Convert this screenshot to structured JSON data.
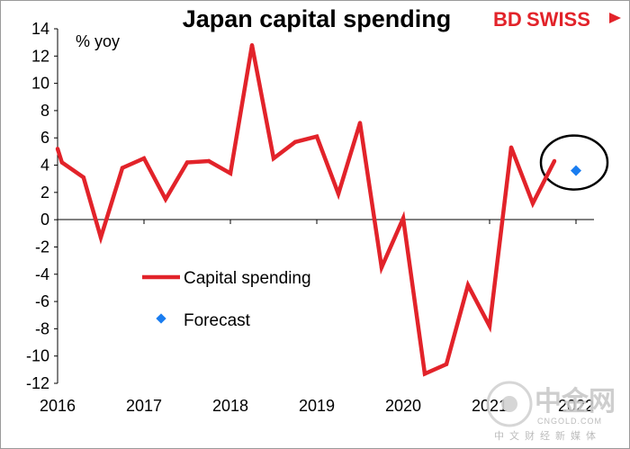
{
  "chart_data": {
    "type": "line",
    "title": "Japan capital spending",
    "ylabel": "% yoy",
    "xlabel": "",
    "ylim": [
      -12,
      14
    ],
    "yticks": [
      14,
      12,
      10,
      8,
      6,
      4,
      2,
      0,
      -2,
      -4,
      -6,
      -8,
      -10,
      -12
    ],
    "xlim": [
      2016.0,
      2022.0
    ],
    "xticks": [
      "2016",
      "2017",
      "2018",
      "2019",
      "2020",
      "2021",
      "2022"
    ],
    "grid": false,
    "legend_position": "center-left",
    "series": [
      {
        "name": "Capital spending",
        "color": "#e2232a",
        "marker": "line",
        "points": [
          {
            "period": "2016 Q1",
            "x": 2016.0,
            "y": 5.2
          },
          {
            "period": "2016 Q1",
            "x": 2016.05,
            "y": 4.2
          },
          {
            "period": "2016 Q2",
            "x": 2016.3,
            "y": 3.1
          },
          {
            "period": "2016 Q3",
            "x": 2016.5,
            "y": -1.3
          },
          {
            "period": "2016 Q4",
            "x": 2016.75,
            "y": 3.8
          },
          {
            "period": "2017 Q1",
            "x": 2017.0,
            "y": 4.5
          },
          {
            "period": "2017 Q2",
            "x": 2017.25,
            "y": 1.5
          },
          {
            "period": "2017 Q3",
            "x": 2017.5,
            "y": 4.2
          },
          {
            "period": "2017 Q4",
            "x": 2017.75,
            "y": 4.3
          },
          {
            "period": "2018 Q1",
            "x": 2018.0,
            "y": 3.4
          },
          {
            "period": "2018 Q2",
            "x": 2018.25,
            "y": 12.8
          },
          {
            "period": "2018 Q3",
            "x": 2018.5,
            "y": 4.5
          },
          {
            "period": "2018 Q4",
            "x": 2018.75,
            "y": 5.7
          },
          {
            "period": "2019 Q1",
            "x": 2019.0,
            "y": 6.1
          },
          {
            "period": "2019 Q2",
            "x": 2019.25,
            "y": 1.9
          },
          {
            "period": "2019 Q3",
            "x": 2019.5,
            "y": 7.1
          },
          {
            "period": "2019 Q4",
            "x": 2019.75,
            "y": -3.5
          },
          {
            "period": "2020 Q1",
            "x": 2020.0,
            "y": 0.1
          },
          {
            "period": "2020 Q2",
            "x": 2020.25,
            "y": -11.3
          },
          {
            "period": "2020 Q3",
            "x": 2020.5,
            "y": -10.6
          },
          {
            "period": "2020 Q4",
            "x": 2020.75,
            "y": -4.8
          },
          {
            "period": "2021 Q1",
            "x": 2021.0,
            "y": -7.8
          },
          {
            "period": "2021 Q2",
            "x": 2021.25,
            "y": 5.3
          },
          {
            "period": "2021 Q3",
            "x": 2021.5,
            "y": 1.2
          },
          {
            "period": "2021 Q4",
            "x": 2021.75,
            "y": 4.3
          }
        ]
      },
      {
        "name": "Forecast",
        "color": "#1a7df0",
        "marker": "diamond",
        "points": [
          {
            "period": "2022 Q1",
            "x": 2022.0,
            "y": 3.6
          }
        ]
      }
    ],
    "annotations": [
      {
        "type": "ellipse",
        "x": 2022.0,
        "y": 3.6,
        "color": "#000000"
      }
    ]
  },
  "branding": {
    "logo_bd": "BD",
    "logo_swiss": "SWISS",
    "watermark_cn": "中金网",
    "watermark_url": "CNGOLD.COM",
    "watermark_sub": "中文财经新媒体"
  },
  "colors": {
    "brand_red": "#e2232a",
    "forecast_blue": "#1a7df0"
  }
}
